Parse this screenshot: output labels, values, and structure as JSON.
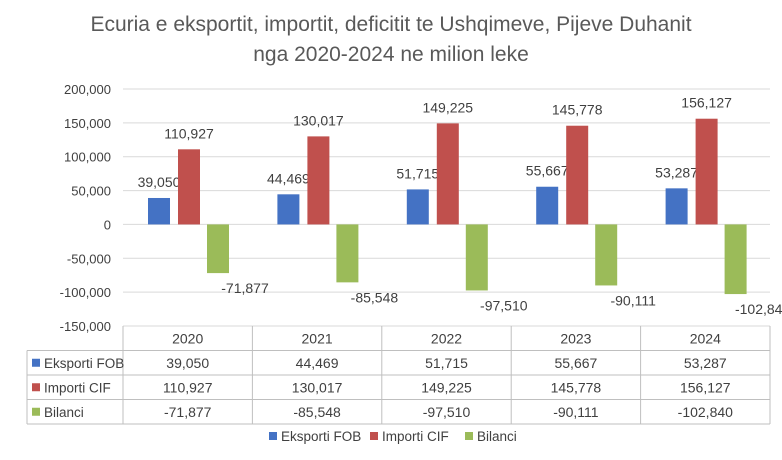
{
  "chart_data": {
    "type": "bar",
    "title_line1": "Ecuria e eksportit, importit, deficitit te Ushqimeve, Pijeve Duhanit",
    "title_line2": "nga 2020-2024 ne milion leke",
    "categories": [
      "2020",
      "2021",
      "2022",
      "2023",
      "2024"
    ],
    "series": [
      {
        "name": "Eksporti FOB",
        "color": "#4472C4",
        "values": [
          39050,
          44469,
          51715,
          55667,
          53287
        ],
        "labels": [
          "39,050",
          "44,469",
          "51,715",
          "55,667",
          "53,287"
        ]
      },
      {
        "name": "Importi CIF",
        "color": "#C0504D",
        "values": [
          110927,
          130017,
          149225,
          145778,
          156127
        ],
        "labels": [
          "110,927",
          "130,017",
          "149,225",
          "145,778",
          "156,127"
        ]
      },
      {
        "name": "Bilanci",
        "color": "#9BBB59",
        "values": [
          -71877,
          -85548,
          -97510,
          -90111,
          -102840
        ],
        "labels": [
          "-71,877",
          "-85,548",
          "-97,510",
          "-90,111",
          "-102,840"
        ]
      }
    ],
    "ylim": [
      -150000,
      200000
    ],
    "yticks": [
      200000,
      150000,
      100000,
      50000,
      0,
      -50000,
      -100000,
      -150000
    ],
    "ytick_labels": [
      "200,000",
      "150,000",
      "100,000",
      "50,000",
      "0",
      "-50,000",
      "-100,000",
      "-150,000"
    ],
    "grid": true,
    "data_table": true,
    "legend_position": "bottom"
  }
}
